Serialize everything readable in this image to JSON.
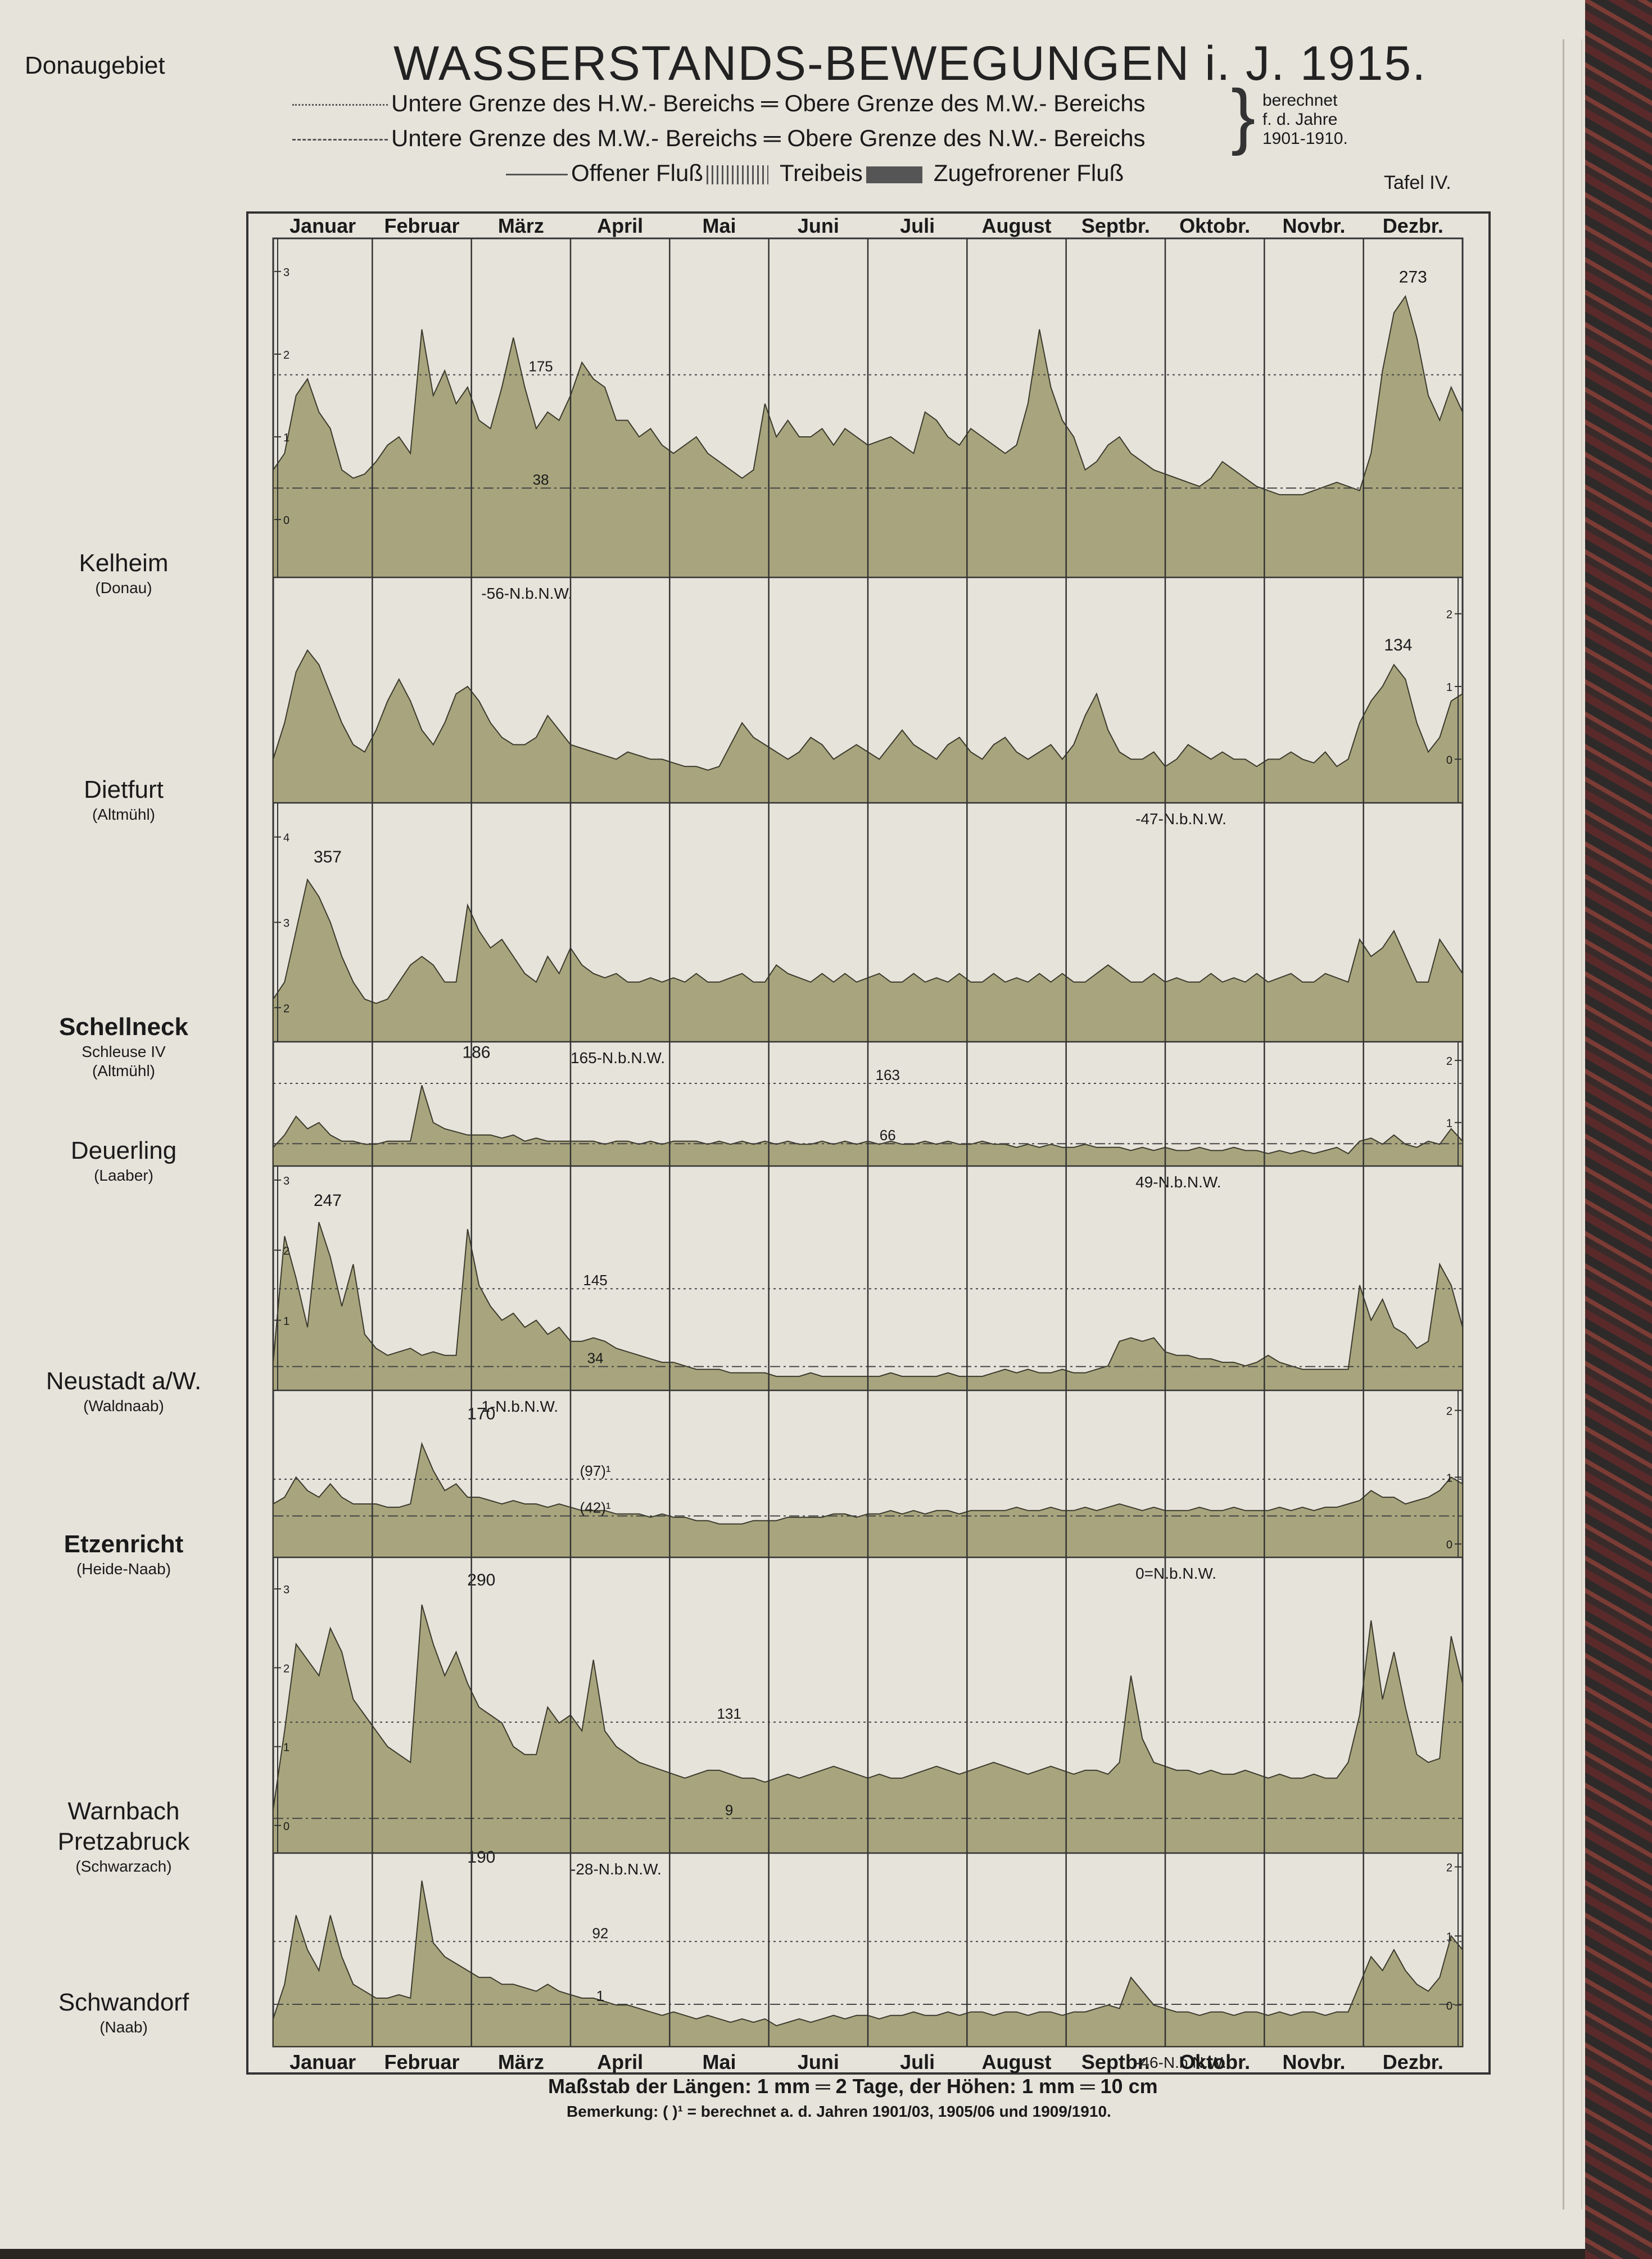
{
  "header": {
    "region": "Donaugebiet",
    "title": "WASSERSTANDS-BEWEGUNGEN i. J. 1915.",
    "legend": {
      "hw_line": "Untere Grenze des H.W.- Bereichs ═ Obere Grenze des M.W.- Bereichs",
      "mw_line": "Untere Grenze des M.W.- Bereichs ═ Obere Grenze des N.W.- Bereichs",
      "computed_note": "berechnet\nf. d. Jahre\n1901-1910.",
      "open_river": "Offener Fluß",
      "drift_ice": "Treibeis",
      "frozen_river": "Zugefrorener Fluß"
    },
    "plate": "Tafel IV."
  },
  "footer": {
    "scale": "Maßstab der Längen: 1 mm ═ 2 Tage, der Höhen: 1 mm ═ 10 cm",
    "remark": "Bemerkung: (  )¹ = berechnet a. d. Jahren 1901/03, 1905/06 und 1909/1910."
  },
  "colors": {
    "fill": "#a8a57e",
    "stroke": "#3b3a2c",
    "paper": "#e6e3db",
    "grid": "#333333"
  },
  "chart_data": {
    "type": "area",
    "months_top": [
      "Januar",
      "Februar",
      "März",
      "April",
      "Mai",
      "Juni",
      "Juli",
      "August",
      "Septbr.",
      "Oktobr.",
      "Novbr.",
      "Dezbr."
    ],
    "months_bottom": [
      "Januar",
      "Februar",
      "März",
      "April",
      "Mai",
      "Juni",
      "Juli",
      "August",
      "Septbr.",
      "Oktobr.",
      "Novbr.",
      "Dezbr."
    ],
    "x_unit": "month of 1915",
    "y_unit": "m",
    "stations": [
      {
        "name": "Kelheim",
        "river": "(Donau)",
        "bold": false,
        "axis_ticks": [
          "0",
          "1",
          "2",
          "3"
        ],
        "axis_side": "left",
        "axis_min": -0.7,
        "axis_max": 3.4,
        "hw_line": {
          "label": "175",
          "value": 1.75,
          "label_month": 2.7
        },
        "mw_line": {
          "label": "38",
          "value": 0.38,
          "label_month": 2.7
        },
        "nnw": {
          "label": "-56-N.b.N.W.",
          "month": 2.1
        },
        "peaks": [
          {
            "label": "273",
            "month": 11.5,
            "value": 2.73
          }
        ],
        "values": [
          0.6,
          0.8,
          1.5,
          1.7,
          1.3,
          1.1,
          0.6,
          0.5,
          0.55,
          0.7,
          0.9,
          1.0,
          0.8,
          2.3,
          1.5,
          1.8,
          1.4,
          1.6,
          1.2,
          1.1,
          1.6,
          2.2,
          1.6,
          1.1,
          1.3,
          1.2,
          1.5,
          1.9,
          1.7,
          1.6,
          1.2,
          1.2,
          1.0,
          1.1,
          0.9,
          0.8,
          0.9,
          1.0,
          0.8,
          0.7,
          0.6,
          0.5,
          0.6,
          1.4,
          1.0,
          1.2,
          1.0,
          1.0,
          1.1,
          0.9,
          1.1,
          1.0,
          0.9,
          0.95,
          1.0,
          0.9,
          0.8,
          1.3,
          1.2,
          1.0,
          0.9,
          1.1,
          1.0,
          0.9,
          0.8,
          0.9,
          1.4,
          2.3,
          1.6,
          1.2,
          1.0,
          0.6,
          0.7,
          0.9,
          1.0,
          0.8,
          0.7,
          0.6,
          0.55,
          0.5,
          0.45,
          0.4,
          0.5,
          0.7,
          0.6,
          0.5,
          0.4,
          0.35,
          0.3,
          0.3,
          0.3,
          0.35,
          0.4,
          0.45,
          0.4,
          0.35,
          0.8,
          1.8,
          2.5,
          2.7,
          2.2,
          1.5,
          1.2,
          1.6,
          1.3
        ]
      },
      {
        "name": "Dietfurt",
        "river": "(Altmühl)",
        "bold": false,
        "axis_ticks": [
          "0",
          "1",
          "2"
        ],
        "axis_side": "right",
        "axis_min": -0.6,
        "axis_max": 2.5,
        "nnw": {
          "label": "-47-N.b.N.W.",
          "month": 8.7
        },
        "peaks": [
          {
            "label": "134",
            "month": 11.35,
            "value": 1.34
          }
        ],
        "values": [
          0.0,
          0.5,
          1.2,
          1.5,
          1.3,
          0.9,
          0.5,
          0.2,
          0.1,
          0.4,
          0.8,
          1.1,
          0.8,
          0.4,
          0.2,
          0.5,
          0.9,
          1.0,
          0.8,
          0.5,
          0.3,
          0.2,
          0.2,
          0.3,
          0.6,
          0.4,
          0.2,
          0.15,
          0.1,
          0.05,
          0.0,
          0.1,
          0.05,
          0.0,
          0.0,
          -0.05,
          -0.1,
          -0.1,
          -0.15,
          -0.1,
          0.2,
          0.5,
          0.3,
          0.2,
          0.1,
          0.0,
          0.1,
          0.3,
          0.2,
          0.0,
          0.1,
          0.2,
          0.1,
          0.0,
          0.2,
          0.4,
          0.2,
          0.1,
          0.0,
          0.2,
          0.3,
          0.1,
          0.0,
          0.2,
          0.3,
          0.1,
          0.0,
          0.1,
          0.2,
          0.0,
          0.2,
          0.6,
          0.9,
          0.4,
          0.1,
          0.0,
          0.0,
          0.1,
          -0.1,
          0.0,
          0.2,
          0.1,
          0.0,
          0.1,
          0.0,
          0.0,
          -0.1,
          0.0,
          0.0,
          0.1,
          0.0,
          -0.05,
          0.1,
          -0.1,
          0.0,
          0.5,
          0.8,
          1.0,
          1.3,
          1.1,
          0.5,
          0.1,
          0.3,
          0.8,
          0.9
        ]
      },
      {
        "name": "Schellneck",
        "river": "Schleuse IV",
        "river2": "(Altmühl)",
        "bold": true,
        "axis_ticks": [
          "2",
          "3",
          "4"
        ],
        "axis_side": "left",
        "axis_min": 1.6,
        "axis_max": 4.4,
        "nnw": {
          "label": "165-N.b.N.W.",
          "month": 3.0
        },
        "peaks": [
          {
            "label": "357",
            "month": 0.55,
            "value": 3.57
          }
        ],
        "values": [
          2.1,
          2.3,
          2.9,
          3.5,
          3.3,
          3.0,
          2.6,
          2.3,
          2.1,
          2.05,
          2.1,
          2.3,
          2.5,
          2.6,
          2.5,
          2.3,
          2.3,
          3.2,
          2.9,
          2.7,
          2.8,
          2.6,
          2.4,
          2.3,
          2.6,
          2.4,
          2.7,
          2.5,
          2.4,
          2.35,
          2.4,
          2.3,
          2.3,
          2.35,
          2.3,
          2.35,
          2.3,
          2.4,
          2.3,
          2.3,
          2.35,
          2.4,
          2.3,
          2.3,
          2.5,
          2.4,
          2.35,
          2.3,
          2.4,
          2.3,
          2.4,
          2.3,
          2.35,
          2.4,
          2.3,
          2.3,
          2.4,
          2.3,
          2.35,
          2.3,
          2.4,
          2.3,
          2.3,
          2.4,
          2.3,
          2.35,
          2.3,
          2.4,
          2.3,
          2.4,
          2.3,
          2.3,
          2.4,
          2.5,
          2.4,
          2.3,
          2.3,
          2.4,
          2.3,
          2.35,
          2.3,
          2.3,
          2.4,
          2.3,
          2.35,
          2.3,
          2.4,
          2.3,
          2.35,
          2.4,
          2.3,
          2.3,
          2.4,
          2.35,
          2.3,
          2.8,
          2.6,
          2.7,
          2.9,
          2.6,
          2.3,
          2.3,
          2.8,
          2.6,
          2.4
        ]
      },
      {
        "name": "Deuerling",
        "river": "(Laaber)",
        "bold": false,
        "axis_ticks": [
          "1",
          "2"
        ],
        "axis_side": "right",
        "axis_min": 0.3,
        "axis_max": 2.3,
        "hw_line": {
          "label": "163",
          "value": 1.63,
          "label_month": 6.2
        },
        "mw_line": {
          "label": "66",
          "value": 0.66,
          "label_month": 6.2
        },
        "nnw": {
          "label": "49-N.b.N.W.",
          "month": 8.7
        },
        "peaks": [
          {
            "label": "186",
            "month": 2.05,
            "value": 1.86
          }
        ],
        "values": [
          0.6,
          0.8,
          1.1,
          0.9,
          1.0,
          0.8,
          0.7,
          0.7,
          0.65,
          0.65,
          0.7,
          0.7,
          0.7,
          1.6,
          1.0,
          0.9,
          0.85,
          0.8,
          0.8,
          0.8,
          0.75,
          0.8,
          0.7,
          0.75,
          0.7,
          0.7,
          0.7,
          0.7,
          0.7,
          0.65,
          0.7,
          0.7,
          0.65,
          0.7,
          0.65,
          0.7,
          0.7,
          0.7,
          0.65,
          0.7,
          0.65,
          0.7,
          0.65,
          0.7,
          0.65,
          0.7,
          0.65,
          0.65,
          0.7,
          0.65,
          0.7,
          0.65,
          0.7,
          0.65,
          0.7,
          0.65,
          0.65,
          0.7,
          0.65,
          0.7,
          0.65,
          0.65,
          0.7,
          0.65,
          0.65,
          0.6,
          0.65,
          0.6,
          0.65,
          0.6,
          0.6,
          0.65,
          0.6,
          0.6,
          0.6,
          0.55,
          0.6,
          0.55,
          0.6,
          0.55,
          0.55,
          0.6,
          0.55,
          0.55,
          0.6,
          0.55,
          0.55,
          0.5,
          0.55,
          0.5,
          0.55,
          0.5,
          0.55,
          0.6,
          0.5,
          0.7,
          0.75,
          0.65,
          0.8,
          0.65,
          0.6,
          0.7,
          0.65,
          0.9,
          0.7
        ]
      },
      {
        "name": "Neustadt a/W.",
        "river": "(Waldnaab)",
        "bold": false,
        "axis_ticks": [
          "1",
          "2",
          "3"
        ],
        "axis_side": "left",
        "axis_min": 0.0,
        "axis_max": 3.2,
        "hw_line": {
          "label": "145",
          "value": 1.45,
          "label_month": 3.25
        },
        "mw_line": {
          "label": "34",
          "value": 0.34,
          "label_month": 3.25
        },
        "nnw": {
          "label": "1-N.b.N.W.",
          "month": 2.1
        },
        "peaks": [
          {
            "label": "247",
            "month": 0.55,
            "value": 2.47
          }
        ],
        "values": [
          0.4,
          2.2,
          1.6,
          0.9,
          2.4,
          1.9,
          1.2,
          1.8,
          0.8,
          0.6,
          0.5,
          0.55,
          0.6,
          0.5,
          0.55,
          0.5,
          0.5,
          2.3,
          1.5,
          1.2,
          1.0,
          1.1,
          0.9,
          1.0,
          0.8,
          0.9,
          0.7,
          0.7,
          0.75,
          0.7,
          0.6,
          0.55,
          0.5,
          0.45,
          0.4,
          0.4,
          0.35,
          0.3,
          0.3,
          0.3,
          0.25,
          0.25,
          0.25,
          0.25,
          0.2,
          0.2,
          0.2,
          0.25,
          0.2,
          0.2,
          0.2,
          0.2,
          0.2,
          0.2,
          0.25,
          0.2,
          0.2,
          0.2,
          0.2,
          0.25,
          0.2,
          0.2,
          0.2,
          0.25,
          0.3,
          0.25,
          0.3,
          0.25,
          0.25,
          0.3,
          0.25,
          0.25,
          0.3,
          0.35,
          0.7,
          0.75,
          0.7,
          0.75,
          0.55,
          0.5,
          0.5,
          0.45,
          0.45,
          0.4,
          0.4,
          0.35,
          0.4,
          0.5,
          0.4,
          0.35,
          0.3,
          0.3,
          0.3,
          0.3,
          0.3,
          1.5,
          1.0,
          1.3,
          0.9,
          0.8,
          0.6,
          0.7,
          1.8,
          1.5,
          0.9
        ]
      },
      {
        "name": "Etzenricht",
        "river": "(Heide-Naab)",
        "bold": true,
        "axis_ticks": [
          "0",
          "1",
          "2"
        ],
        "axis_side": "right",
        "axis_min": -0.2,
        "axis_max": 2.3,
        "hw_line": {
          "label": "(97)¹",
          "value": 0.97,
          "label_month": 3.25
        },
        "mw_line": {
          "label": "(42)¹",
          "value": 0.42,
          "label_month": 3.25
        },
        "nnw": {
          "label": "0=N.b.N.W.",
          "month": 8.7
        },
        "peaks": [
          {
            "label": "170",
            "month": 2.1,
            "value": 1.7
          }
        ],
        "values": [
          0.6,
          0.7,
          1.0,
          0.8,
          0.7,
          0.9,
          0.7,
          0.6,
          0.6,
          0.6,
          0.55,
          0.55,
          0.6,
          1.5,
          1.1,
          0.8,
          0.9,
          0.7,
          0.7,
          0.65,
          0.6,
          0.65,
          0.6,
          0.6,
          0.55,
          0.6,
          0.55,
          0.5,
          0.5,
          0.5,
          0.45,
          0.45,
          0.45,
          0.4,
          0.45,
          0.4,
          0.4,
          0.35,
          0.35,
          0.3,
          0.3,
          0.3,
          0.35,
          0.35,
          0.35,
          0.4,
          0.4,
          0.4,
          0.4,
          0.45,
          0.45,
          0.4,
          0.45,
          0.45,
          0.5,
          0.45,
          0.5,
          0.45,
          0.5,
          0.5,
          0.45,
          0.5,
          0.5,
          0.5,
          0.5,
          0.55,
          0.5,
          0.5,
          0.55,
          0.5,
          0.5,
          0.55,
          0.5,
          0.55,
          0.6,
          0.55,
          0.5,
          0.55,
          0.5,
          0.5,
          0.5,
          0.55,
          0.5,
          0.5,
          0.55,
          0.5,
          0.5,
          0.5,
          0.55,
          0.5,
          0.55,
          0.5,
          0.55,
          0.55,
          0.6,
          0.65,
          0.8,
          0.7,
          0.7,
          0.6,
          0.65,
          0.7,
          0.8,
          1.0,
          0.9
        ]
      },
      {
        "name": "Warnbach",
        "name2": "Pretzabruck",
        "river": "(Schwarzach)",
        "bold": false,
        "axis_ticks": [
          "0",
          "1",
          "2",
          "3"
        ],
        "axis_side": "left",
        "axis_min": -0.35,
        "axis_max": 3.4,
        "hw_line": {
          "label": "131",
          "value": 1.31,
          "label_month": 4.6
        },
        "mw_line": {
          "label": "9",
          "value": 0.09,
          "label_month": 4.6
        },
        "nnw": {
          "label": "-28-N.b.N.W.",
          "month": 3.0
        },
        "peaks": [
          {
            "label": "290",
            "month": 2.1,
            "value": 2.9
          }
        ],
        "values": [
          0.2,
          1.2,
          2.3,
          2.1,
          1.9,
          2.5,
          2.2,
          1.6,
          1.4,
          1.2,
          1.0,
          0.9,
          0.8,
          2.8,
          2.3,
          1.9,
          2.2,
          1.8,
          1.5,
          1.4,
          1.3,
          1.0,
          0.9,
          0.9,
          1.5,
          1.3,
          1.4,
          1.2,
          2.1,
          1.2,
          1.0,
          0.9,
          0.8,
          0.75,
          0.7,
          0.65,
          0.6,
          0.65,
          0.7,
          0.7,
          0.65,
          0.6,
          0.6,
          0.55,
          0.6,
          0.65,
          0.6,
          0.65,
          0.7,
          0.75,
          0.7,
          0.65,
          0.6,
          0.65,
          0.6,
          0.6,
          0.65,
          0.7,
          0.75,
          0.7,
          0.65,
          0.7,
          0.75,
          0.8,
          0.75,
          0.7,
          0.65,
          0.7,
          0.75,
          0.7,
          0.65,
          0.7,
          0.7,
          0.65,
          0.8,
          1.9,
          1.1,
          0.8,
          0.75,
          0.7,
          0.7,
          0.65,
          0.7,
          0.65,
          0.65,
          0.7,
          0.65,
          0.6,
          0.65,
          0.6,
          0.6,
          0.65,
          0.6,
          0.6,
          0.8,
          1.4,
          2.6,
          1.6,
          2.2,
          1.5,
          0.9,
          0.8,
          0.85,
          2.4,
          1.8
        ]
      },
      {
        "name": "Schwandorf",
        "river": "(Naab)",
        "bold": false,
        "axis_ticks": [
          "0",
          "1",
          "2"
        ],
        "axis_side": "right",
        "axis_min": -0.6,
        "axis_max": 2.2,
        "hw_line": {
          "label": "92",
          "value": 0.92,
          "label_month": 3.3
        },
        "mw_line": {
          "label": "1",
          "value": 0.01,
          "label_month": 3.3
        },
        "nnw": {
          "label": "-46-N.b.N.W.",
          "month": 8.7
        },
        "peaks": [
          {
            "label": "190",
            "month": 2.1,
            "value": 1.9
          }
        ],
        "values": [
          -0.2,
          0.3,
          1.3,
          0.8,
          0.5,
          1.3,
          0.7,
          0.3,
          0.2,
          0.1,
          0.1,
          0.15,
          0.1,
          1.8,
          0.9,
          0.7,
          0.6,
          0.5,
          0.4,
          0.4,
          0.3,
          0.3,
          0.25,
          0.2,
          0.3,
          0.2,
          0.15,
          0.1,
          0.1,
          0.05,
          0.0,
          0.0,
          -0.05,
          -0.1,
          -0.15,
          -0.1,
          -0.15,
          -0.2,
          -0.15,
          -0.2,
          -0.25,
          -0.2,
          -0.25,
          -0.2,
          -0.3,
          -0.25,
          -0.2,
          -0.25,
          -0.2,
          -0.15,
          -0.2,
          -0.15,
          -0.15,
          -0.2,
          -0.15,
          -0.15,
          -0.1,
          -0.15,
          -0.15,
          -0.1,
          -0.15,
          -0.1,
          -0.1,
          -0.15,
          -0.1,
          -0.1,
          -0.15,
          -0.1,
          -0.1,
          -0.15,
          -0.1,
          -0.1,
          -0.05,
          0.0,
          -0.05,
          0.4,
          0.2,
          0.0,
          -0.05,
          -0.1,
          -0.1,
          -0.15,
          -0.1,
          -0.1,
          -0.15,
          -0.1,
          -0.1,
          -0.15,
          -0.1,
          -0.15,
          -0.1,
          -0.1,
          -0.15,
          -0.1,
          -0.1,
          0.3,
          0.7,
          0.5,
          0.8,
          0.5,
          0.3,
          0.2,
          0.4,
          1.0,
          0.8
        ]
      }
    ]
  }
}
